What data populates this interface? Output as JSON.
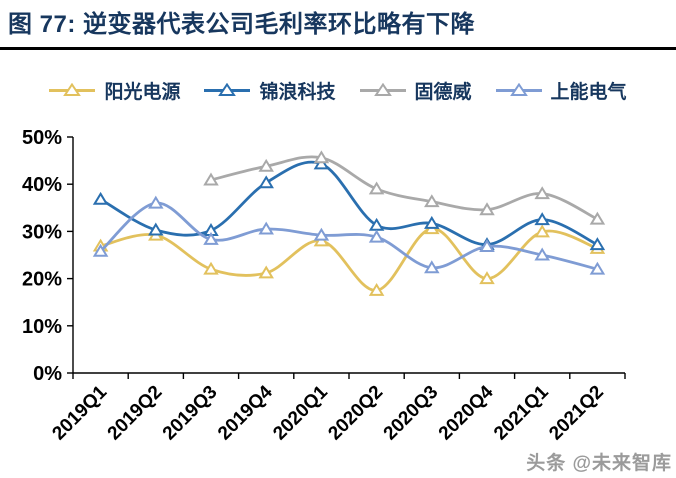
{
  "title": "图 77:  逆变器代表公司毛利率环比略有下降",
  "watermark": "头条 @未来智库",
  "chart_data": {
    "type": "line",
    "title": "逆变器代表公司毛利率环比略有下降",
    "categories": [
      "2019Q1",
      "2019Q2",
      "2019Q3",
      "2019Q4",
      "2020Q1",
      "2020Q2",
      "2020Q3",
      "2020Q4",
      "2021Q1",
      "2021Q2"
    ],
    "series": [
      {
        "name": "阳光电源",
        "color": "#E2C15D",
        "values": [
          26.9,
          29.2,
          22.0,
          21.2,
          28.0,
          17.5,
          30.6,
          20.0,
          29.9,
          26.4
        ]
      },
      {
        "name": "锦浪科技",
        "color": "#2A6FAF",
        "values": [
          36.8,
          30.3,
          30.2,
          40.3,
          44.3,
          31.3,
          31.7,
          27.2,
          32.5,
          27.2
        ]
      },
      {
        "name": "固德威",
        "color": "#A9A9A9",
        "values": [
          null,
          null,
          40.9,
          43.8,
          45.6,
          39.0,
          36.3,
          34.6,
          38.0,
          32.6
        ]
      },
      {
        "name": "上能电气",
        "color": "#7F9CD4",
        "values": [
          25.8,
          36.0,
          28.3,
          30.5,
          29.2,
          28.8,
          22.3,
          26.8,
          25.0,
          22.0
        ]
      }
    ],
    "ylim": [
      0,
      50
    ],
    "y_tick_labels": [
      "0%",
      "10%",
      "20%",
      "30%",
      "40%",
      "50%"
    ],
    "xlabel": "",
    "ylabel": "",
    "grid": false,
    "legend_position": "top",
    "marker": "open-triangle",
    "x_label_rotation": -45
  }
}
